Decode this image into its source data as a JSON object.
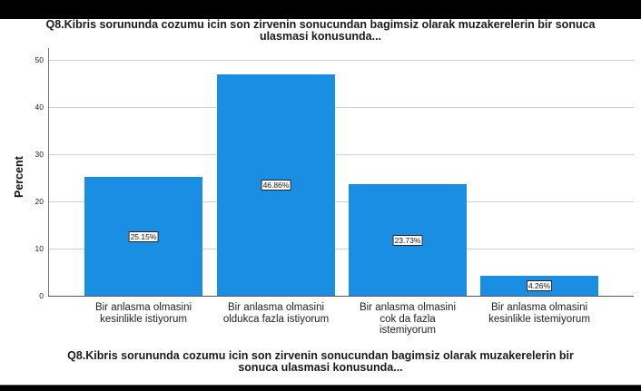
{
  "chart_data": {
    "type": "bar",
    "title": "Q8.Kibris sorununda cozumu icin son zirvenin sonucundan bagimsiz olarak muzakerelerin bir sonuca ulasmasi konusunda...",
    "title_lines": [
      "Q8.Kibris sorununda cozumu icin son zirvenin sonucundan bagimsiz olarak muzakerelerin bir sonuca",
      "ulasmasi konusunda..."
    ],
    "xlabel": "Q8.Kibris sorununda cozumu icin son zirvenin sonucundan bagimsiz olarak muzakerelerin bir sonuca ulasmasi konusunda...",
    "xlabel_lines": [
      "Q8.Kibris sorununda cozumu icin son zirvenin sonucundan bagimsiz olarak muzakerelerin bir",
      "sonuca ulasmasi konusunda..."
    ],
    "ylabel": "Percent",
    "ylim": [
      0,
      50
    ],
    "yticks": [
      "0",
      "10",
      "20",
      "30",
      "40",
      "50"
    ],
    "grid": true,
    "bar_color": "#1a8ee2",
    "categories": [
      "Bir anlasma olmasini kesinlikle istiyorum",
      "Bir anlasma olmasini oldukca fazla istiyorum",
      "Bir anlasma olmasini cok da fazla istemiyorum",
      "Bir anlasma olmasini kesinlikle istemiyorum"
    ],
    "category_lines": [
      [
        "Bir anlasma olmasini",
        "kesinlikle istiyorum"
      ],
      [
        "Bir anlasma olmasini",
        "oldukca fazla istiyorum"
      ],
      [
        "Bir anlasma olmasini",
        "cok da fazla",
        "istemiyorum"
      ],
      [
        "Bir anlasma olmasini",
        "kesinlikle istemiyorum"
      ]
    ],
    "values": [
      25.15,
      46.86,
      23.73,
      4.26
    ],
    "data_labels": [
      "25.15%",
      "46.86%",
      "23.73%",
      "4.26%"
    ]
  }
}
